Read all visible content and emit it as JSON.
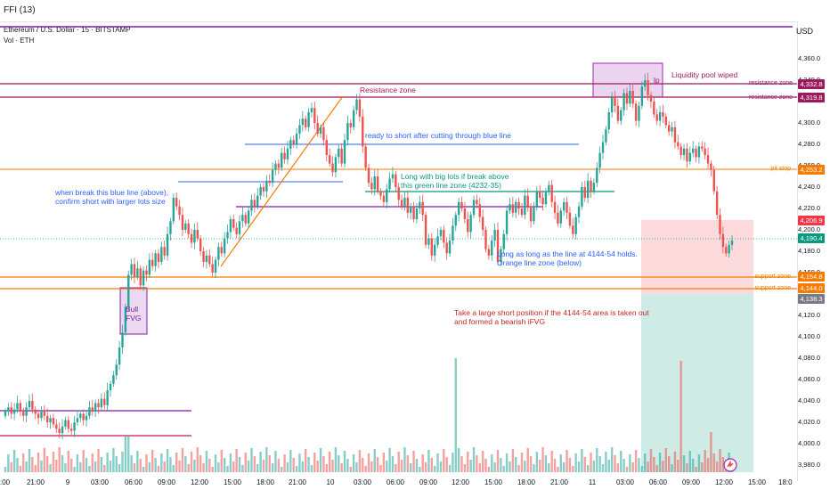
{
  "header": {
    "title": "FFI (13)"
  },
  "chart_header": {
    "symbol": "Ethereum / U.S. Dollar · 15 · BITSTAMP",
    "volume_legend": "Vol · ETH"
  },
  "axis": {
    "currency": "USD",
    "y_ticks": [
      "4,360.0",
      "4,340.0",
      "4,300.0",
      "4,280.0",
      "4,260.0",
      "4,240.0",
      "4,220.0",
      "4,200.0",
      "4,180.0",
      "4,160.0",
      "4,120.0",
      "4,100.0",
      "4,080.0",
      "4,060.0",
      "4,040.0",
      "4,020.0",
      "4,000.0",
      "3,980.0"
    ],
    "x_ticks": [
      ":00",
      "21:00",
      "9",
      "03:00",
      "06:00",
      "09:00",
      "12:00",
      "15:00",
      "18:00",
      "21:00",
      "10",
      "03:00",
      "06:00",
      "09:00",
      "12:00",
      "15:00",
      "18:00",
      "21:00",
      "11",
      "03:00",
      "06:00",
      "09:00",
      "12:00",
      "15:00",
      "18:0"
    ]
  },
  "price_tags": {
    "resistance_1": {
      "label": "resistance zone",
      "value": "4,332.8",
      "color": "#9c1a5c"
    },
    "resistance_2": {
      "label": "resistance zone",
      "value": "4,319.8",
      "color": "#9c1a5c"
    },
    "pit_stop": {
      "label": "pit stop",
      "value": "4,253.2",
      "color": "#f57c00"
    },
    "stop_price": {
      "value": "4,206.9",
      "color": "#f23645"
    },
    "last_price": {
      "value": "4,190.4",
      "color": "#089981"
    },
    "support_1": {
      "label": "support zone",
      "value": "4,154.8",
      "color": "#f57c00"
    },
    "support_2": {
      "label": "support zone",
      "value": "4,144.0",
      "color": "#f57c00"
    },
    "target_price": {
      "value": "4,138.3",
      "color": "#787b86"
    }
  },
  "annotations": {
    "liquidity": "Liquidity pool wiped",
    "lp": "lp",
    "resistance_zone": "Resistance zone",
    "ready_short": "ready to short after cutting through blue line",
    "long_green_1": "Long with big lots if break above",
    "long_green_2": "this green line zone (4232-35)",
    "blue_break_1": "when break this blue line (above),",
    "blue_break_2": "confirm short with larger lots size",
    "orange_long_1": "Long as long as the line at 4144-54 holds.",
    "orange_long_2": "Orange line zone (below)",
    "bull_fvg_1": "Bull",
    "bull_fvg_2": "FVG",
    "short_1": "Take a large short position if the 4144-54 area is taken out",
    "short_2": "and formed a bearish iFVG"
  },
  "colors": {
    "up": "#26a69a",
    "down": "#ef5350",
    "resistance": "#9c1a5c",
    "orange": "#f57c00",
    "blue": "#2962ff",
    "purple": "#7b1fa2",
    "green": "#089981"
  },
  "chart_data": {
    "type": "candlestick",
    "title": "Ethereum / U.S. Dollar · 15 · BITSTAMP",
    "ylabel": "USD",
    "ylim": [
      3980,
      4365
    ],
    "close": [
      4030,
      4034,
      4028,
      4032,
      4038,
      4030,
      4026,
      4034,
      4040,
      4032,
      4028,
      4024,
      4030,
      4026,
      4020,
      4024,
      4018,
      4014,
      4010,
      4016,
      4022,
      4014,
      4012,
      4020,
      4024,
      4028,
      4022,
      4026,
      4034,
      4030,
      4038,
      4034,
      4042,
      4036,
      4050,
      4056,
      4064,
      4074,
      4090,
      4104,
      4128,
      4158,
      4168,
      4156,
      4164,
      4148,
      4162,
      4158,
      4172,
      4166,
      4178,
      4170,
      4184,
      4176,
      4196,
      4208,
      4230,
      4222,
      4214,
      4200,
      4206,
      4196,
      4188,
      4200,
      4192,
      4180,
      4170,
      4176,
      4168,
      4160,
      4172,
      4184,
      4178,
      4192,
      4198,
      4210,
      4202,
      4196,
      4208,
      4214,
      4206,
      4218,
      4228,
      4222,
      4232,
      4240,
      4236,
      4246,
      4244,
      4256,
      4262,
      4258,
      4272,
      4266,
      4276,
      4284,
      4280,
      4290,
      4298,
      4304,
      4296,
      4310,
      4314,
      4300,
      4290,
      4296,
      4284,
      4270,
      4262,
      4254,
      4268,
      4276,
      4262,
      4284,
      4300,
      4296,
      4312,
      4322,
      4306,
      4278,
      4258,
      4244,
      4238,
      4250,
      4236,
      4232,
      4226,
      4238,
      4248,
      4252,
      4240,
      4228,
      4222,
      4230,
      4216,
      4222,
      4210,
      4220,
      4226,
      4214,
      4186,
      4192,
      4176,
      4186,
      4194,
      4200,
      4188,
      4178,
      4190,
      4204,
      4214,
      4226,
      4220,
      4210,
      4198,
      4214,
      4228,
      4224,
      4212,
      4200,
      4182,
      4176,
      4190,
      4200,
      4170,
      4182,
      4196,
      4218,
      4224,
      4216,
      4226,
      4220,
      4214,
      4232,
      4222,
      4208,
      4222,
      4236,
      4230,
      4224,
      4236,
      4242,
      4226,
      4216,
      4206,
      4218,
      4226,
      4216,
      4204,
      4196,
      4212,
      4222,
      4240,
      4230,
      4246,
      4236,
      4244,
      4258,
      4272,
      4282,
      4294,
      4310,
      4324,
      4316,
      4302,
      4312,
      4328,
      4318,
      4330,
      4318,
      4302,
      4316,
      4334,
      4340,
      4326,
      4320,
      4308,
      4302,
      4310,
      4306,
      4298,
      4292,
      4296,
      4282,
      4278,
      4270,
      4276,
      4264,
      4272,
      4276,
      4268,
      4278,
      4276,
      4270,
      4262,
      4256,
      4236,
      4214,
      4196,
      4184,
      4178,
      4186,
      4190
    ]
  }
}
